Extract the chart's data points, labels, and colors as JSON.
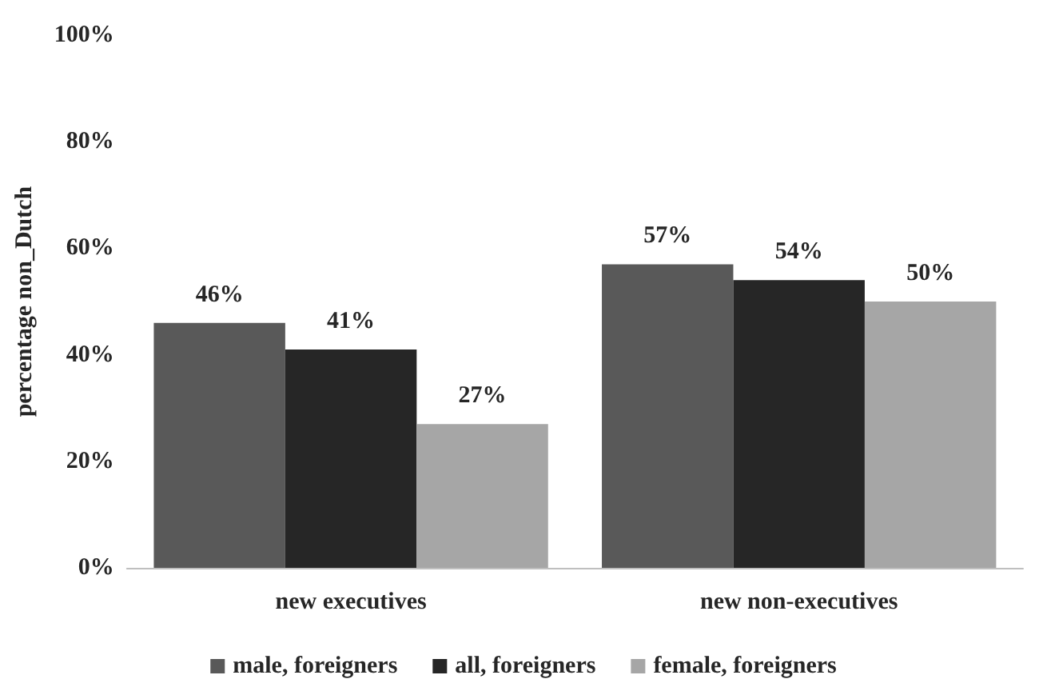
{
  "chart_data": {
    "type": "bar",
    "ylabel": "percentage non_Dutch",
    "categories": [
      "new executives",
      "new non-executives"
    ],
    "series": [
      {
        "name": "male, foreigners",
        "color": "#595959",
        "values": [
          46,
          57
        ],
        "value_labels": [
          "46%",
          "57%"
        ]
      },
      {
        "name": "all, foreigners",
        "color": "#262626",
        "values": [
          41,
          54
        ],
        "value_labels": [
          "41%",
          "54%"
        ]
      },
      {
        "name": "female, foreigners",
        "color": "#a6a6a6",
        "values": [
          27,
          50
        ],
        "value_labels": [
          "27%",
          "50%"
        ]
      }
    ],
    "ylim": [
      0,
      100
    ],
    "yticks": [
      {
        "value": 0,
        "label": "0%"
      },
      {
        "value": 20,
        "label": "20%"
      },
      {
        "value": 40,
        "label": "40%"
      },
      {
        "value": 60,
        "label": "60%"
      },
      {
        "value": 80,
        "label": "80%"
      },
      {
        "value": 100,
        "label": "100%"
      }
    ],
    "grid": false,
    "legend": "bottom"
  }
}
